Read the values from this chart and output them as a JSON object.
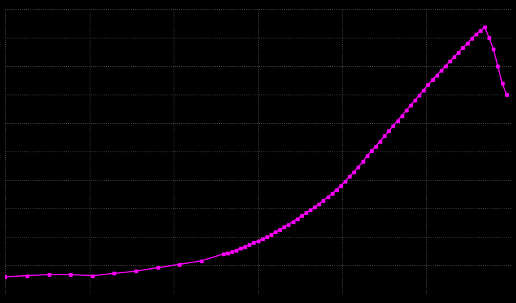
{
  "years": [
    1900,
    1905,
    1910,
    1915,
    1920,
    1925,
    1930,
    1935,
    1940,
    1945,
    1950,
    1951,
    1952,
    1953,
    1954,
    1955,
    1956,
    1957,
    1958,
    1959,
    1960,
    1961,
    1962,
    1963,
    1964,
    1965,
    1966,
    1967,
    1968,
    1969,
    1970,
    1971,
    1972,
    1973,
    1974,
    1975,
    1976,
    1977,
    1978,
    1979,
    1980,
    1981,
    1982,
    1983,
    1984,
    1985,
    1986,
    1987,
    1988,
    1989,
    1990,
    1991,
    1992,
    1993,
    1994,
    1995,
    1996,
    1997,
    1998,
    1999,
    2000,
    2001,
    2002,
    2003,
    2004,
    2005,
    2006,
    2007,
    2008,
    2009,
    2010,
    2011,
    2012,
    2013,
    2014,
    2015
  ],
  "population": [
    1.5,
    1.6,
    1.7,
    1.7,
    1.6,
    1.8,
    2.0,
    2.3,
    2.6,
    2.9,
    3.5,
    3.6,
    3.7,
    3.85,
    4.0,
    4.15,
    4.3,
    4.5,
    4.65,
    4.85,
    5.0,
    5.2,
    5.45,
    5.65,
    5.9,
    6.1,
    6.35,
    6.6,
    6.85,
    7.1,
    7.35,
    7.6,
    7.9,
    8.2,
    8.5,
    8.8,
    9.15,
    9.5,
    9.9,
    10.3,
    10.7,
    11.15,
    11.6,
    12.1,
    12.55,
    12.95,
    13.4,
    13.85,
    14.3,
    14.75,
    15.2,
    15.65,
    16.1,
    16.55,
    17.0,
    17.45,
    17.9,
    18.35,
    18.8,
    19.2,
    19.6,
    20.0,
    20.4,
    20.8,
    21.2,
    21.6,
    22.0,
    22.4,
    22.8,
    23.1,
    23.4,
    22.5,
    21.5,
    20.0,
    18.5,
    17.5
  ],
  "line_color": "#ff00ff",
  "marker": "s",
  "marker_size": 2.5,
  "line_width": 1.2,
  "bg_color": "#000000",
  "grid_color": "#555555",
  "ylim_min": 0,
  "ylim_max": 25,
  "xlim_min": 1900,
  "xlim_max": 2016,
  "n_xgrid": 6,
  "n_ygrid": 10
}
